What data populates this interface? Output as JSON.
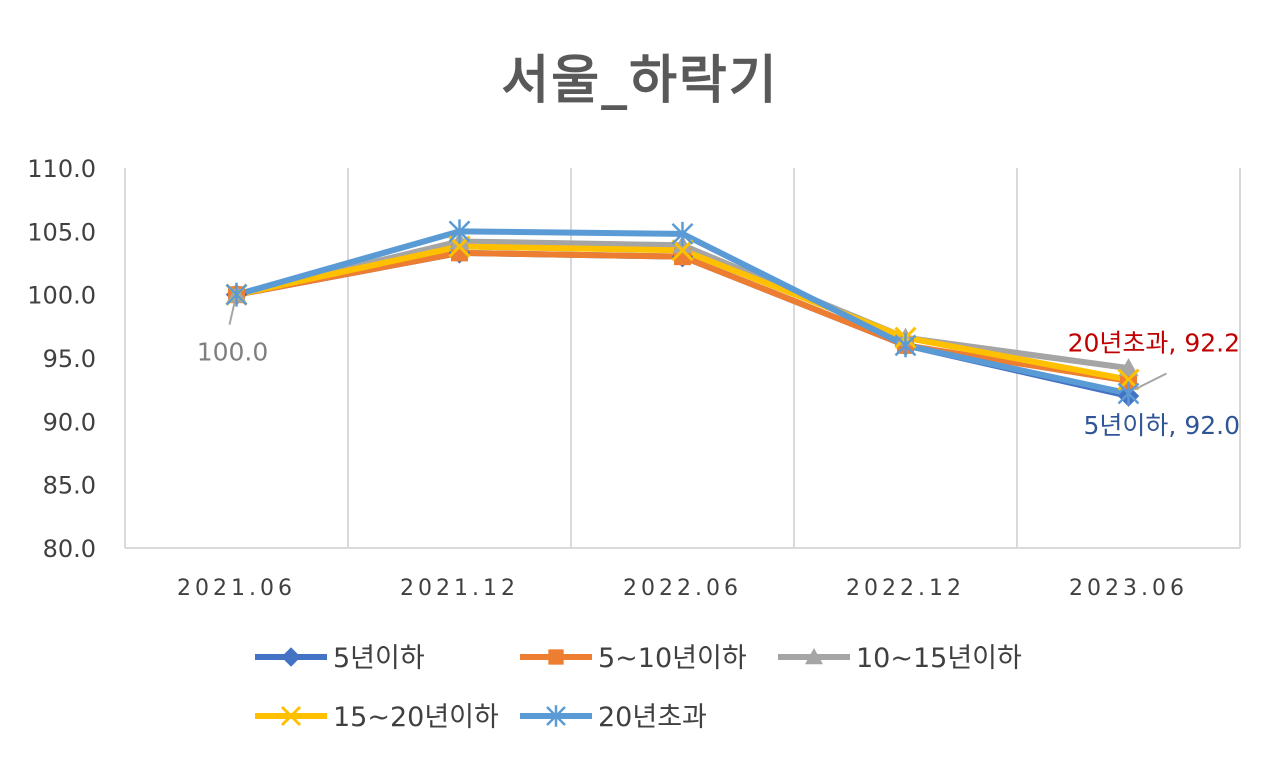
{
  "chart_data": {
    "type": "line",
    "title": "서울_하락기",
    "categories": [
      "2021.06",
      "2021.12",
      "2022.06",
      "2022.12",
      "2023.06"
    ],
    "ylim": [
      80,
      110
    ],
    "yticks": [
      "80.0",
      "85.0",
      "90.0",
      "95.0",
      "100.0",
      "105.0",
      "110.0"
    ],
    "grid": "vertical",
    "legend_position": "bottom",
    "series": [
      {
        "name": "5년이하",
        "color": "#4472C4",
        "marker": "diamond",
        "values": [
          100.0,
          103.3,
          103.0,
          96.0,
          92.0
        ]
      },
      {
        "name": "5~10년이하",
        "color": "#ED7D31",
        "marker": "square",
        "values": [
          100.0,
          103.3,
          103.0,
          96.0,
          93.2
        ]
      },
      {
        "name": "10~15년이하",
        "color": "#A5A5A5",
        "marker": "triangle",
        "values": [
          100.0,
          104.2,
          103.9,
          96.6,
          94.2
        ]
      },
      {
        "name": "15~20년이하",
        "color": "#FFC000",
        "marker": "x",
        "values": [
          100.0,
          103.8,
          103.5,
          96.6,
          93.3
        ]
      },
      {
        "name": "20년초과",
        "color": "#5B9BD5",
        "marker": "star",
        "values": [
          100.0,
          105.0,
          104.8,
          96.0,
          92.2
        ]
      }
    ],
    "annotations": [
      {
        "text": "100.0",
        "color": "#7F7F7F",
        "series": 2,
        "point": 0
      },
      {
        "text": "20년초과, 92.2",
        "color": "#C00000",
        "series": 4,
        "point": 4
      },
      {
        "text": "5년이하, 92.0",
        "color": "#2F5597",
        "series": 0,
        "point": 4
      }
    ]
  }
}
